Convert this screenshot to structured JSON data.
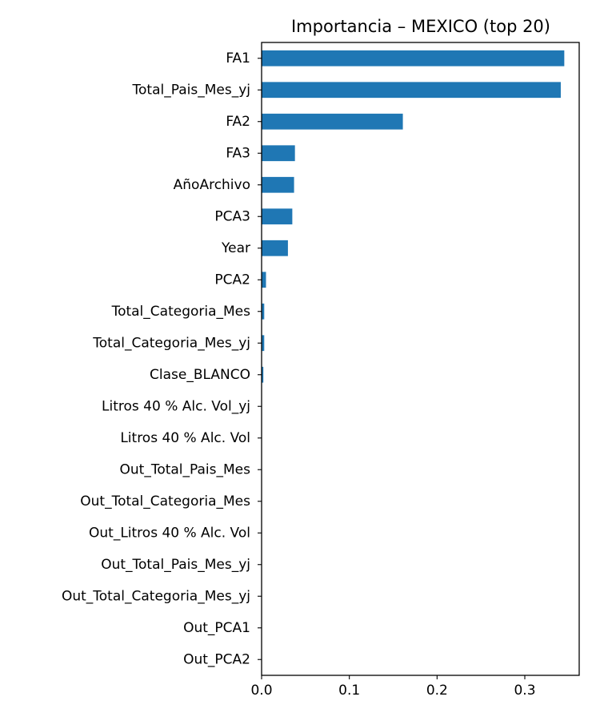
{
  "chart_data": {
    "type": "bar",
    "orientation": "horizontal",
    "title": "Importancia – MEXICO (top 20)",
    "xlabel": "",
    "ylabel": "",
    "color": "#1f77b4",
    "grid": false,
    "xlim": [
      0,
      0.362
    ],
    "x_ticks": [
      0.0,
      0.1,
      0.2,
      0.3
    ],
    "x_tick_labels": [
      "0.0",
      "0.1",
      "0.2",
      "0.3"
    ],
    "categories": [
      "FA1",
      "Total_Pais_Mes_yj",
      "FA2",
      "FA3",
      "AñoArchivo",
      "PCA3",
      "Year",
      "PCA2",
      "Total_Categoria_Mes",
      "Total_Categoria_Mes_yj",
      "Clase_BLANCO",
      "Litros 40 % Alc. Vol_yj",
      "Litros 40 % Alc. Vol",
      "Out_Total_Pais_Mes",
      "Out_Total_Categoria_Mes",
      "Out_Litros 40 % Alc. Vol",
      "Out_Total_Pais_Mes_yj",
      "Out_Total_Categoria_Mes_yj",
      "Out_PCA1",
      "Out_PCA2"
    ],
    "values": [
      0.345,
      0.341,
      0.161,
      0.038,
      0.037,
      0.035,
      0.03,
      0.005,
      0.003,
      0.003,
      0.002,
      0,
      0,
      0,
      0,
      0,
      0,
      0,
      0,
      0
    ]
  }
}
